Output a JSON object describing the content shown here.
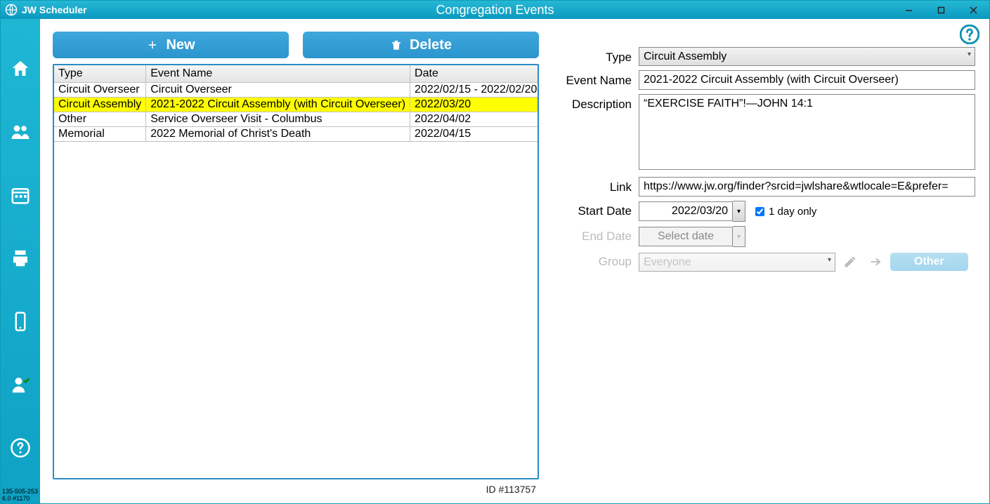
{
  "window": {
    "app_name": "JW Scheduler",
    "title": "Congregation Events"
  },
  "sidebar": {
    "footer_line1": "135-505-253",
    "footer_line2": "6.0 #1170"
  },
  "toolbar": {
    "new_label": "New",
    "delete_label": "Delete"
  },
  "table": {
    "columns": {
      "type": "Type",
      "event_name": "Event Name",
      "date": "Date"
    },
    "rows": [
      {
        "type": "Circuit Overseer",
        "name": "Circuit Overseer",
        "date": "2022/02/15 - 2022/02/20",
        "selected": false
      },
      {
        "type": "Circuit Assembly",
        "name": "2021-2022 Circuit Assembly (with Circuit Overseer)",
        "date": "2022/03/20",
        "selected": true
      },
      {
        "type": "Other",
        "name": "Service Overseer Visit - Columbus",
        "date": "2022/04/02",
        "selected": false
      },
      {
        "type": "Memorial",
        "name": "2022 Memorial of Christ's Death",
        "date": "2022/04/15",
        "selected": false
      }
    ]
  },
  "form": {
    "labels": {
      "type": "Type",
      "event_name": "Event Name",
      "description": "Description",
      "link": "Link",
      "start_date": "Start Date",
      "end_date": "End Date",
      "group": "Group",
      "one_day": "1 day only",
      "other_btn": "Other"
    },
    "type_value": "Circuit Assembly",
    "event_name_value": "2021-2022 Circuit Assembly (with Circuit Overseer)",
    "description_value": "“EXERCISE FAITH”!—JOHN 14:1",
    "link_value": "https://www.jw.org/finder?srcid=jwlshare&wtlocale=E&prefer=",
    "start_date_value": "2022/03/20",
    "one_day_checked": true,
    "end_date_placeholder": "Select date",
    "group_value": "Everyone"
  },
  "footer": {
    "id_text": "ID #113757"
  },
  "colors": {
    "title_grad_top": "#26b8d6",
    "title_grad_bot": "#0a99bf",
    "button_blue": "#2b95ce",
    "select_yellow": "#ffff00",
    "border_blue": "#2a8cc4"
  }
}
